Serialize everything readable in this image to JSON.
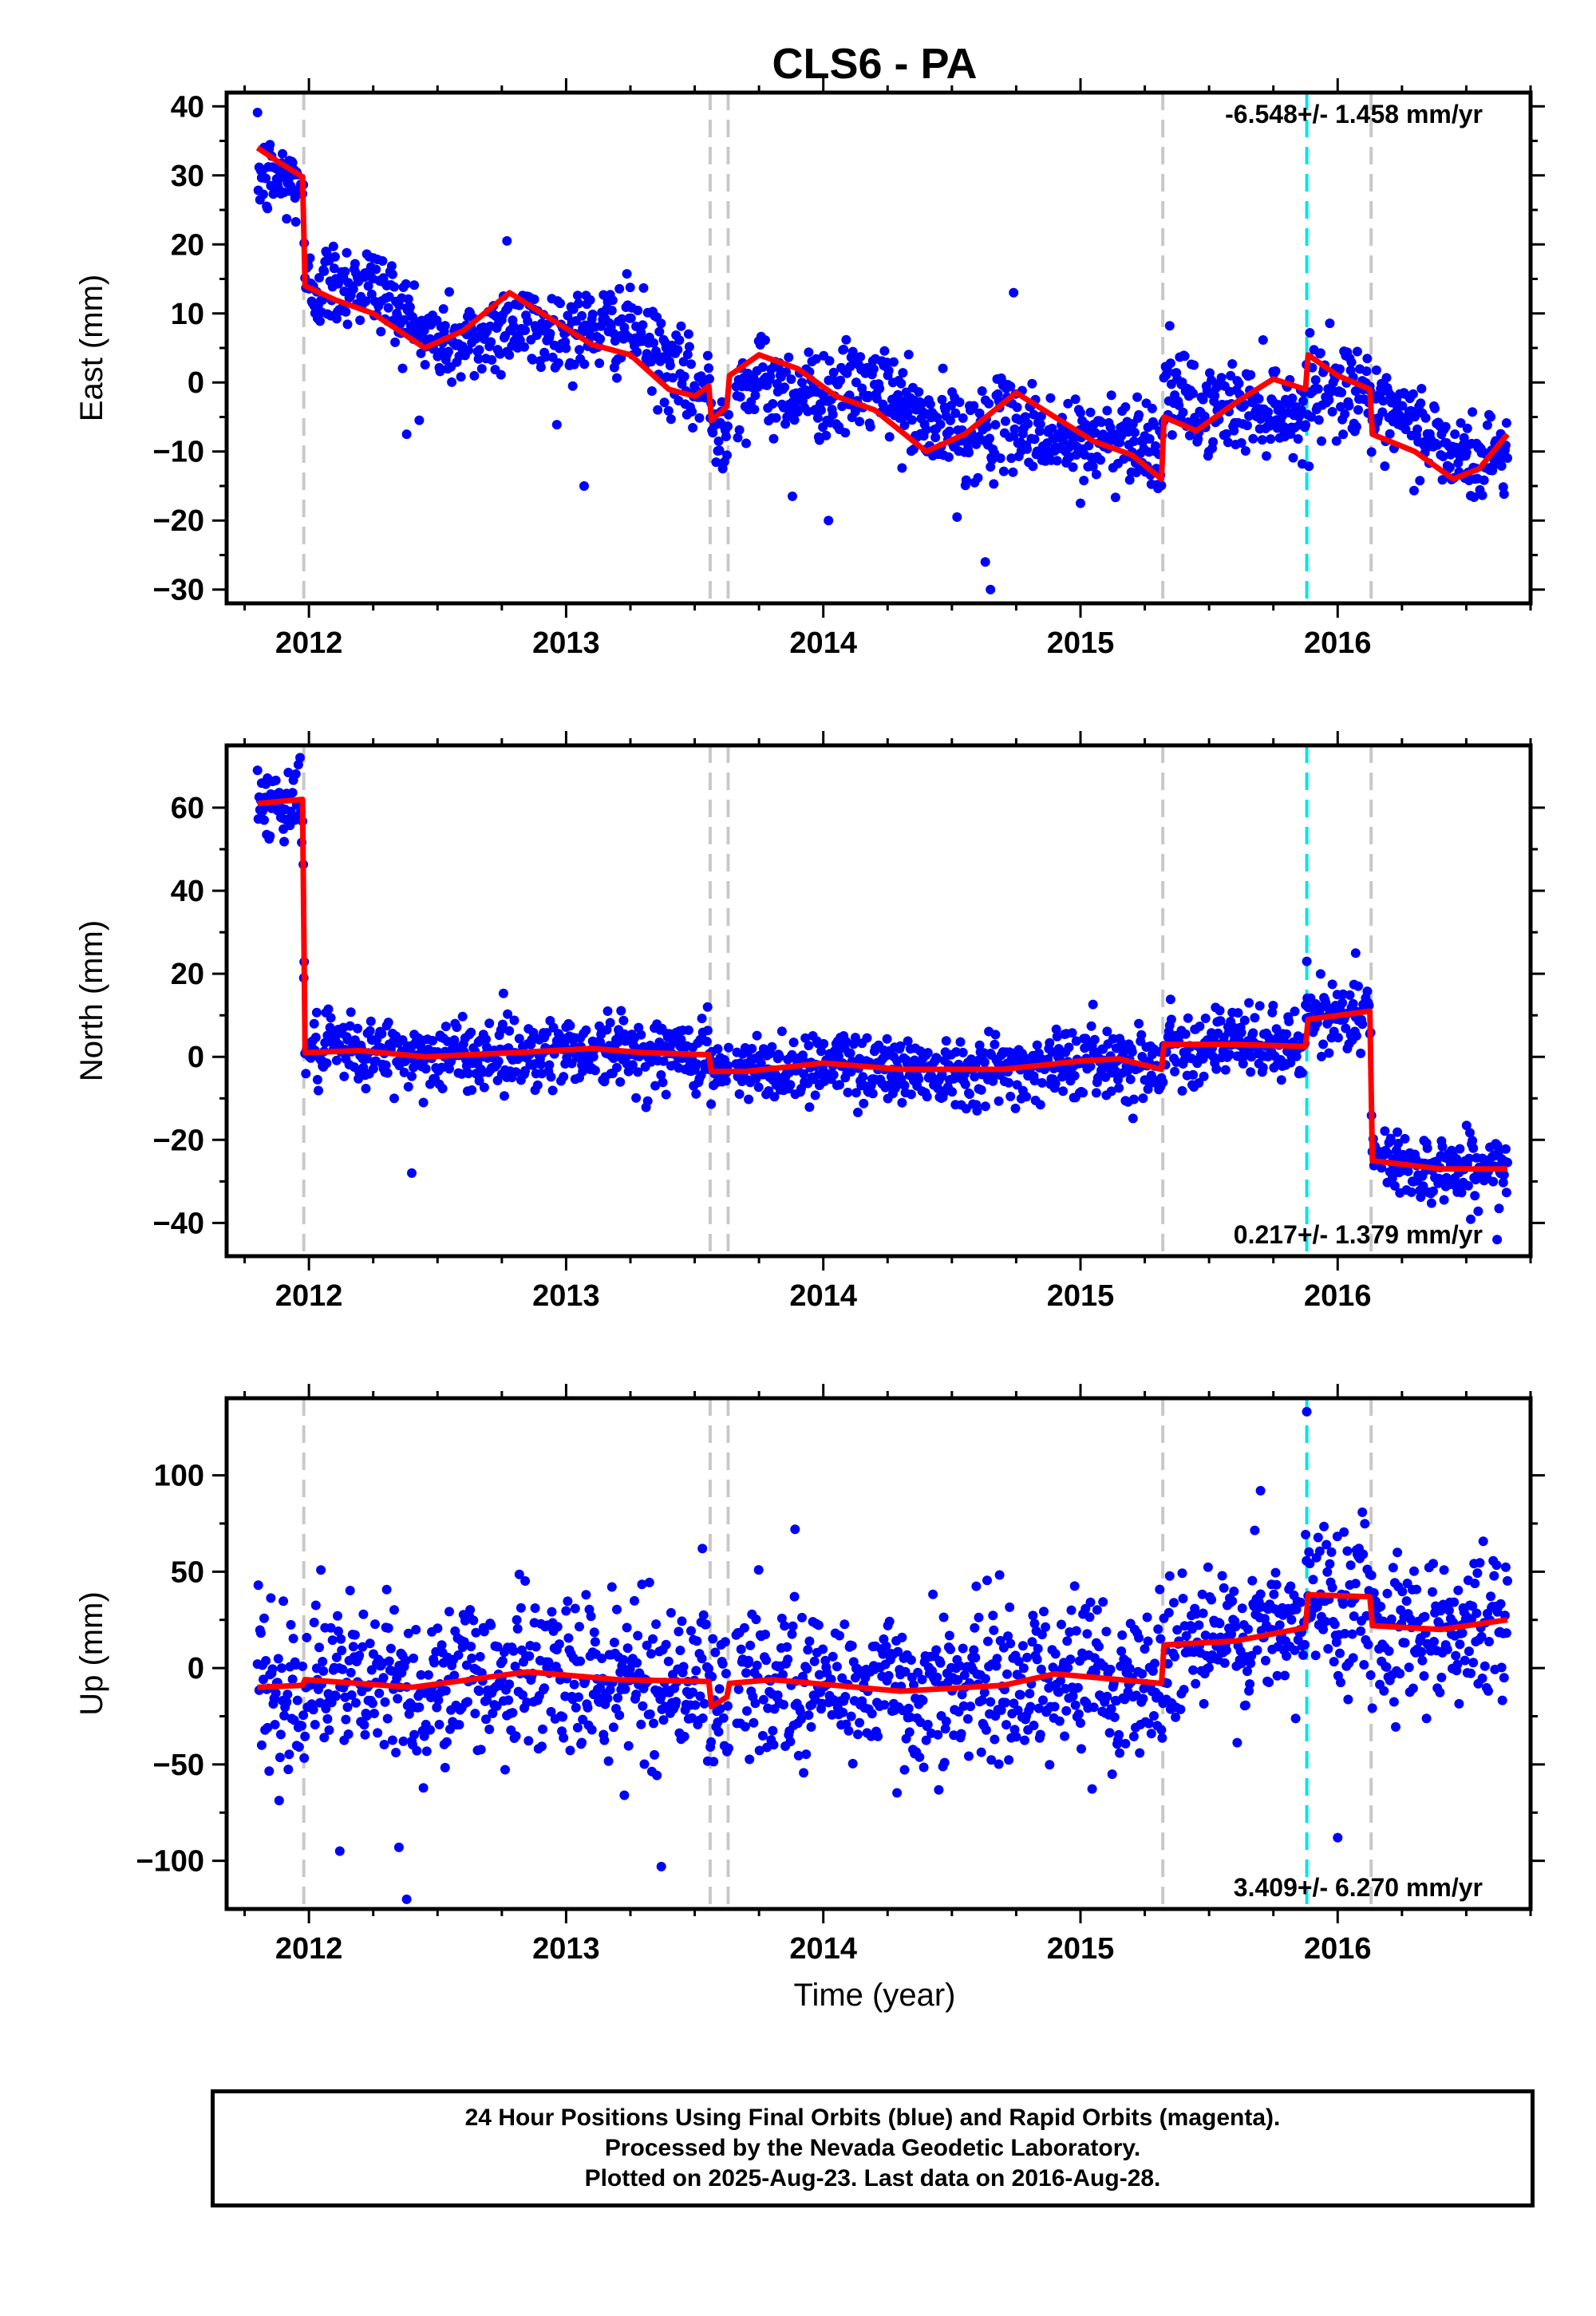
{
  "title": "CLS6 - PA",
  "caption": {
    "line1": "24 Hour Positions Using Final Orbits (blue) and Rapid Orbits (magenta).",
    "line2": "Processed by the Nevada Geodetic Laboratory.",
    "line3": "Plotted on 2025-Aug-23. Last data on 2016-Aug-28."
  },
  "colors": {
    "points": "#0000ff",
    "model": "#ff0000",
    "breaks": "#c8c8c8",
    "antenna_change": "#00e5e5"
  },
  "chart_data": [
    {
      "type": "scatter",
      "ylabel": "East (mm)",
      "xlabel": "",
      "xlim": [
        2011.68,
        2016.75
      ],
      "ylim": [
        -32,
        42
      ],
      "yticks": [
        -30,
        -20,
        -10,
        0,
        10,
        20,
        30,
        40
      ],
      "ytick_labels": [
        "−30",
        "−20",
        "−10",
        "0",
        "10",
        "20",
        "30",
        "40"
      ],
      "xticks": [
        2012,
        2013,
        2014,
        2015,
        2016
      ],
      "xtick_labels": [
        "2012",
        "2013",
        "2014",
        "2015",
        "2016"
      ],
      "rate": "-6.548+/- 1.458 mm/yr",
      "rate_position": "top-right",
      "breaks_gray": [
        2011.98,
        2013.56,
        2013.63,
        2015.32,
        2016.13
      ],
      "breaks_cyan": [
        2015.88
      ],
      "model_knots": [
        [
          2011.8,
          34
        ],
        [
          2011.9,
          31.5
        ],
        [
          2011.975,
          29.8
        ],
        [
          2011.985,
          14
        ],
        [
          2012.1,
          12
        ],
        [
          2012.25,
          10
        ],
        [
          2012.45,
          5
        ],
        [
          2012.6,
          7.5
        ],
        [
          2012.78,
          13
        ],
        [
          2012.95,
          9
        ],
        [
          2013.1,
          5.5
        ],
        [
          2013.25,
          4
        ],
        [
          2013.4,
          -1
        ],
        [
          2013.5,
          -2
        ],
        [
          2013.555,
          -0.5
        ],
        [
          2013.565,
          -5.5
        ],
        [
          2013.625,
          -3.5
        ],
        [
          2013.635,
          1
        ],
        [
          2013.75,
          4
        ],
        [
          2013.9,
          2
        ],
        [
          2014.05,
          -2
        ],
        [
          2014.2,
          -4
        ],
        [
          2014.4,
          -10
        ],
        [
          2014.55,
          -7.5
        ],
        [
          2014.75,
          -1.5
        ],
        [
          2014.9,
          -5
        ],
        [
          2015.05,
          -8.5
        ],
        [
          2015.2,
          -10.5
        ],
        [
          2015.315,
          -14
        ],
        [
          2015.325,
          -5
        ],
        [
          2015.45,
          -7
        ],
        [
          2015.6,
          -3
        ],
        [
          2015.75,
          0.5
        ],
        [
          2015.875,
          -1
        ],
        [
          2015.885,
          4
        ],
        [
          2016.0,
          1
        ],
        [
          2016.125,
          -1
        ],
        [
          2016.135,
          -7.5
        ],
        [
          2016.3,
          -10
        ],
        [
          2016.45,
          -14
        ],
        [
          2016.55,
          -12.5
        ],
        [
          2016.66,
          -7.5
        ]
      ],
      "scatter_sigma": 3.2,
      "outliers": [
        [
          2014.65,
          -30
        ],
        [
          2014.63,
          -26
        ],
        [
          2013.07,
          -15
        ],
        [
          2012.38,
          -7.5
        ],
        [
          2014.02,
          -20
        ],
        [
          2013.88,
          -16.5
        ],
        [
          2014.52,
          -19.5
        ],
        [
          2015.0,
          -17.5
        ],
        [
          2014.74,
          13
        ],
        [
          2012.77,
          20.5
        ]
      ]
    },
    {
      "type": "scatter",
      "ylabel": "North (mm)",
      "xlabel": "",
      "xlim": [
        2011.68,
        2016.75
      ],
      "ylim": [
        -48,
        75
      ],
      "yticks": [
        -40,
        -20,
        0,
        20,
        40,
        60
      ],
      "ytick_labels": [
        "−40",
        "−20",
        "0",
        "20",
        "40",
        "60"
      ],
      "xticks": [
        2012,
        2013,
        2014,
        2015,
        2016
      ],
      "xtick_labels": [
        "2012",
        "2013",
        "2014",
        "2015",
        "2016"
      ],
      "rate": "0.217+/- 1.379 mm/yr",
      "rate_position": "bottom-right",
      "breaks_gray": [
        2011.98,
        2013.56,
        2013.63,
        2015.32,
        2016.13
      ],
      "breaks_cyan": [
        2015.88
      ],
      "model_knots": [
        [
          2011.8,
          61
        ],
        [
          2011.975,
          62
        ],
        [
          2011.985,
          1
        ],
        [
          2012.2,
          1.5
        ],
        [
          2012.45,
          0
        ],
        [
          2012.8,
          1
        ],
        [
          2013.1,
          2
        ],
        [
          2013.3,
          1
        ],
        [
          2013.555,
          0.5
        ],
        [
          2013.565,
          -3.5
        ],
        [
          2013.7,
          -3.5
        ],
        [
          2014.0,
          -1.5
        ],
        [
          2014.3,
          -3
        ],
        [
          2014.7,
          -3
        ],
        [
          2015.0,
          -1
        ],
        [
          2015.15,
          -0.5
        ],
        [
          2015.315,
          -3
        ],
        [
          2015.325,
          3
        ],
        [
          2015.6,
          3
        ],
        [
          2015.875,
          2.5
        ],
        [
          2015.885,
          9
        ],
        [
          2016.125,
          11
        ],
        [
          2016.135,
          -25
        ],
        [
          2016.4,
          -27
        ],
        [
          2016.66,
          -27
        ]
      ],
      "scatter_sigma": 4.2,
      "outliers": [
        [
          2012.4,
          -28
        ],
        [
          2011.98,
          19
        ],
        [
          2015.88,
          23
        ],
        [
          2016.07,
          25
        ],
        [
          2016.62,
          -44
        ],
        [
          2013.55,
          12
        ]
      ]
    },
    {
      "type": "scatter",
      "ylabel": "Up (mm)",
      "xlabel": "Time (year)",
      "xlim": [
        2011.68,
        2016.75
      ],
      "ylim": [
        -125,
        140
      ],
      "yticks": [
        -100,
        -50,
        0,
        50,
        100
      ],
      "ytick_labels": [
        "−100",
        "−50",
        "0",
        "50",
        "100"
      ],
      "xticks": [
        2012,
        2013,
        2014,
        2015,
        2016
      ],
      "xtick_labels": [
        "2012",
        "2013",
        "2014",
        "2015",
        "2016"
      ],
      "rate": "3.409+/- 6.270 mm/yr",
      "rate_position": "bottom-right",
      "breaks_gray": [
        2011.98,
        2013.56,
        2013.63,
        2015.32,
        2016.13
      ],
      "breaks_cyan": [
        2015.88
      ],
      "model_knots": [
        [
          2011.8,
          -10
        ],
        [
          2011.975,
          -9
        ],
        [
          2011.985,
          -6
        ],
        [
          2012.4,
          -10
        ],
        [
          2012.85,
          -2
        ],
        [
          2013.2,
          -6
        ],
        [
          2013.555,
          -7
        ],
        [
          2013.565,
          -20
        ],
        [
          2013.625,
          -15
        ],
        [
          2013.635,
          -8
        ],
        [
          2013.8,
          -6
        ],
        [
          2014.3,
          -12
        ],
        [
          2014.7,
          -9
        ],
        [
          2014.9,
          -3
        ],
        [
          2015.315,
          -8
        ],
        [
          2015.325,
          12
        ],
        [
          2015.6,
          14
        ],
        [
          2015.875,
          21
        ],
        [
          2015.885,
          38
        ],
        [
          2016.125,
          37
        ],
        [
          2016.135,
          22
        ],
        [
          2016.4,
          20
        ],
        [
          2016.66,
          25
        ]
      ],
      "scatter_sigma": 20,
      "outliers": [
        [
          2015.88,
          133
        ],
        [
          2012.38,
          -120
        ],
        [
          2012.12,
          -95
        ],
        [
          2012.35,
          -93
        ],
        [
          2013.37,
          -103
        ],
        [
          2016.0,
          -88
        ],
        [
          2015.7,
          92
        ],
        [
          2013.53,
          62
        ],
        [
          2013.89,
          72
        ]
      ]
    }
  ]
}
